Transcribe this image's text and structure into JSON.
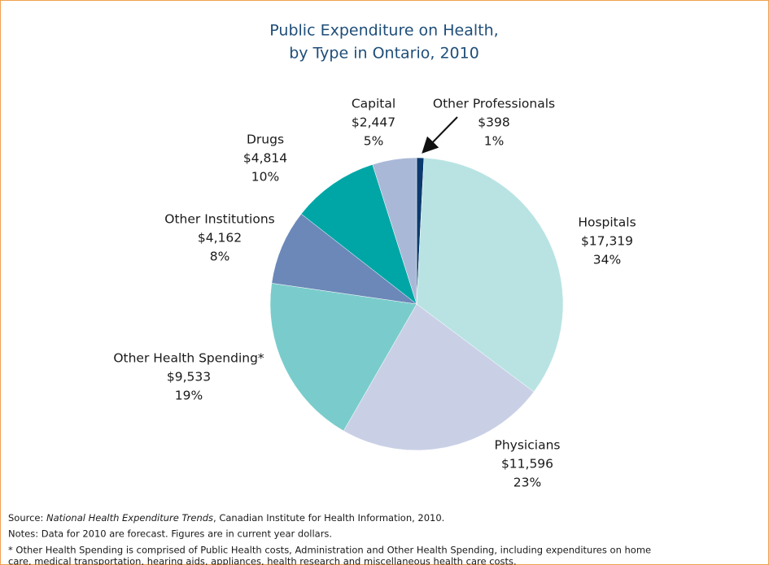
{
  "chart_data": {
    "type": "pie",
    "title": [
      "Public Expenditure on Health,",
      "by Type in Ontario, 2010"
    ],
    "categories": [
      "Other Professionals",
      "Hospitals",
      "Physicians",
      "Other Health Spending*",
      "Other Institutions",
      "Drugs",
      "Capital"
    ],
    "values": [
      398,
      17319,
      11596,
      9533,
      4162,
      4814,
      2447
    ],
    "value_labels": [
      "$398",
      "$17,319",
      "$11,596",
      "$9,533",
      "$4,162",
      "$4,814",
      "$2,447"
    ],
    "percent_labels": [
      "1%",
      "34%",
      "23%",
      "19%",
      "8%",
      "10%",
      "5%"
    ],
    "colors": [
      "#0b3a6e",
      "#b9e3e3",
      "#c9d0e6",
      "#7acccc",
      "#6b88b8",
      "#00a6a6",
      "#a9b8d7"
    ],
    "source": [
      "Source: ",
      "National Health Expenditure Trends",
      ", Canadian Institute for Health Information, 2010."
    ],
    "notes": [
      "Notes: Data for 2010 are forecast. Figures are in current year dollars.",
      "* Other Health Spending is comprised of Public Health costs, Administration and Other Health Spending, including expenditures on home",
      "care, medical transportation, hearing aids, appliances, health research and miscellaneous health care costs."
    ]
  }
}
